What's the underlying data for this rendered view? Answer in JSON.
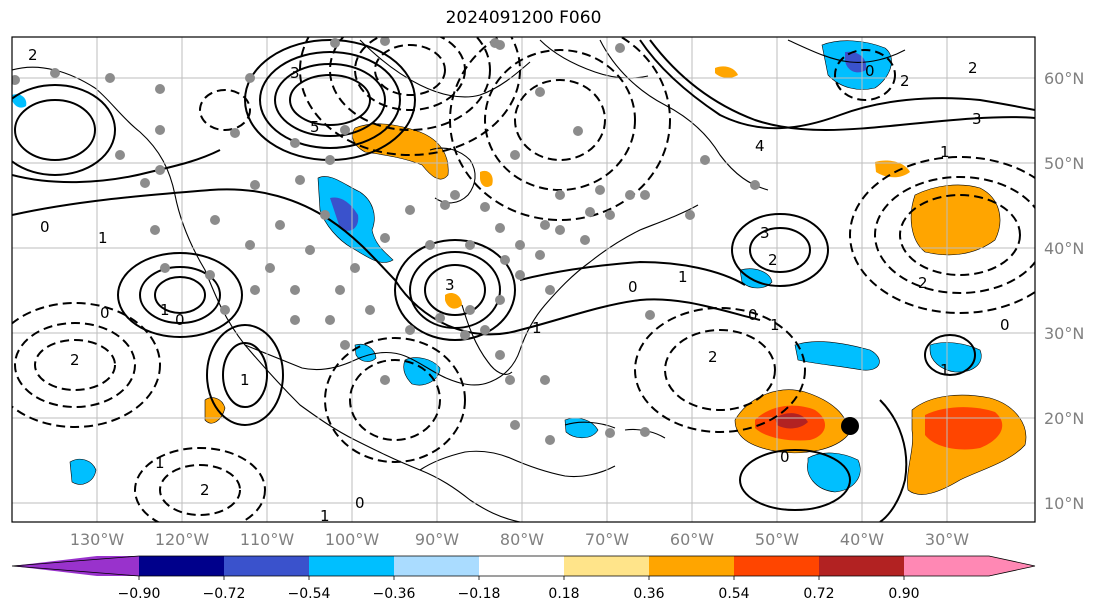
{
  "title": "2024091200 F060",
  "lon_ticks": [
    "130°W",
    "120°W",
    "110°W",
    "100°W",
    "90°W",
    "80°W",
    "70°W",
    "60°W",
    "50°W",
    "40°W",
    "30°W"
  ],
  "lat_ticks": [
    "60°N",
    "50°N",
    "40°N",
    "30°N",
    "20°N",
    "10°N"
  ],
  "colorbar": {
    "tick_labels": [
      "−0.90",
      "−0.72",
      "−0.54",
      "−0.36",
      "−0.18",
      "0.18",
      "0.36",
      "0.54",
      "0.72",
      "0.90"
    ],
    "colors": [
      "#9932cc",
      "#00008b",
      "#3a52cc",
      "#00bfff",
      "#aadcff",
      "#ffffff",
      "#ffe48a",
      "#ffa500",
      "#ff4500",
      "#b22222",
      "#ff88b4"
    ]
  },
  "contour_labels": [
    "2",
    "0",
    "3",
    "5",
    "1",
    "2",
    "0",
    "1",
    "0",
    "1",
    "1",
    "2",
    "0",
    "1",
    "3",
    "1",
    "0",
    "2",
    "3",
    "2",
    "1",
    "0",
    "1",
    "0",
    "2",
    "0",
    "1",
    "2",
    "0",
    "1",
    "2",
    "4",
    "3"
  ],
  "colors": {
    "frame": "#000000",
    "grid": "#bdbdbd",
    "dots": "#8c8c8c",
    "marker": "#000000"
  }
}
